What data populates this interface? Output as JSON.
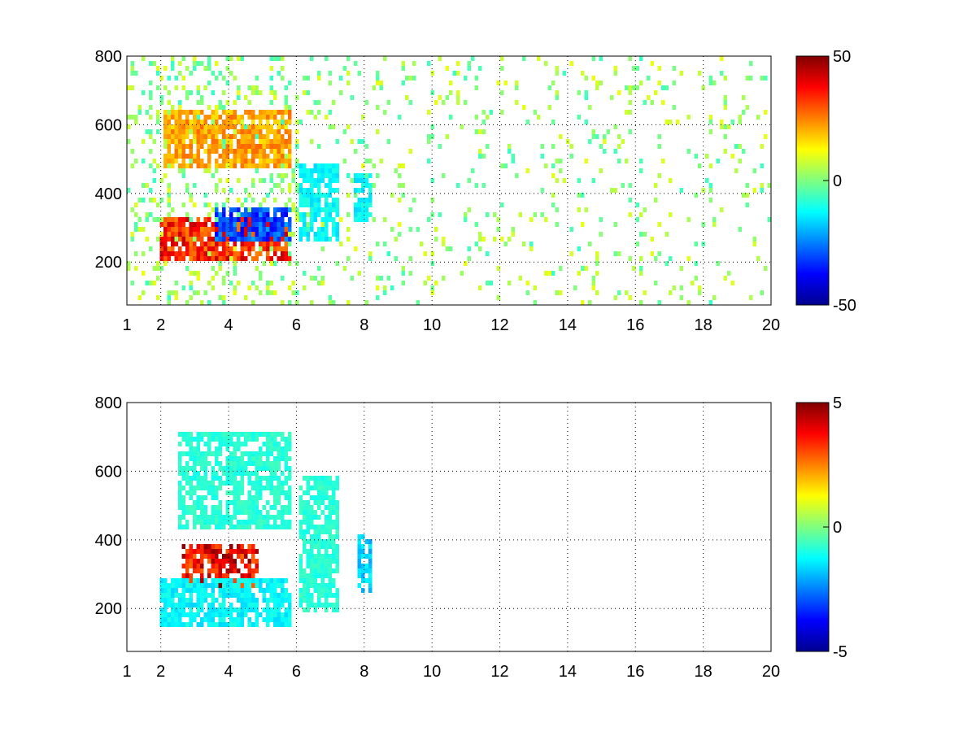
{
  "chart_data": [
    {
      "type": "heatmap",
      "title": "",
      "xlabel": "",
      "ylabel": "",
      "xlim": [
        1,
        20
      ],
      "ylim": [
        75,
        800
      ],
      "xticks": [
        1,
        2,
        4,
        6,
        8,
        10,
        12,
        14,
        16,
        18,
        20
      ],
      "yticks": [
        200,
        400,
        600,
        800
      ],
      "grid": "dotted",
      "colormap": "jet",
      "clim": [
        -50,
        50
      ],
      "colorbar_ticks": [
        50,
        0,
        -50
      ],
      "features": [
        {
          "kind": "band",
          "x": [
            1.9,
            5.8
          ],
          "y": [
            215,
            340
          ],
          "value": 40
        },
        {
          "kind": "band",
          "x": [
            3.5,
            5.8
          ],
          "y": [
            270,
            360
          ],
          "value": -35
        },
        {
          "kind": "band",
          "x": [
            2.0,
            5.8
          ],
          "y": [
            480,
            650
          ],
          "value": 25
        },
        {
          "kind": "patch",
          "x": [
            6.0,
            7.2
          ],
          "y": [
            260,
            500
          ],
          "value": -15
        },
        {
          "kind": "patch",
          "x": [
            7.6,
            8.2
          ],
          "y": [
            330,
            470
          ],
          "value": -15
        }
      ]
    },
    {
      "type": "heatmap",
      "title": "",
      "xlabel": "",
      "ylabel": "",
      "xlim": [
        1,
        20
      ],
      "ylim": [
        75,
        800
      ],
      "xticks": [
        1,
        2,
        4,
        6,
        8,
        10,
        12,
        14,
        16,
        18,
        20
      ],
      "yticks": [
        200,
        400,
        600,
        800
      ],
      "grid": "dotted",
      "colormap": "jet",
      "clim": [
        -5,
        5
      ],
      "colorbar_ticks": [
        5,
        0,
        -5
      ],
      "features": [
        {
          "kind": "band",
          "x": [
            2.6,
            4.8
          ],
          "y": [
            260,
            390
          ],
          "value": 4.5
        },
        {
          "kind": "band",
          "x": [
            1.9,
            5.8
          ],
          "y": [
            160,
            300
          ],
          "value": -1.5
        },
        {
          "kind": "band",
          "x": [
            2.5,
            5.8
          ],
          "y": [
            440,
            720
          ],
          "value": -1
        },
        {
          "kind": "patch",
          "x": [
            6.0,
            7.2
          ],
          "y": [
            200,
            600
          ],
          "value": -1
        },
        {
          "kind": "patch",
          "x": [
            7.7,
            8.2
          ],
          "y": [
            250,
            420
          ],
          "value": -2
        }
      ]
    }
  ],
  "colors": {
    "jet": [
      "#00008f",
      "#0000ff",
      "#00ffff",
      "#ffff00",
      "#ff0000",
      "#800000"
    ]
  }
}
